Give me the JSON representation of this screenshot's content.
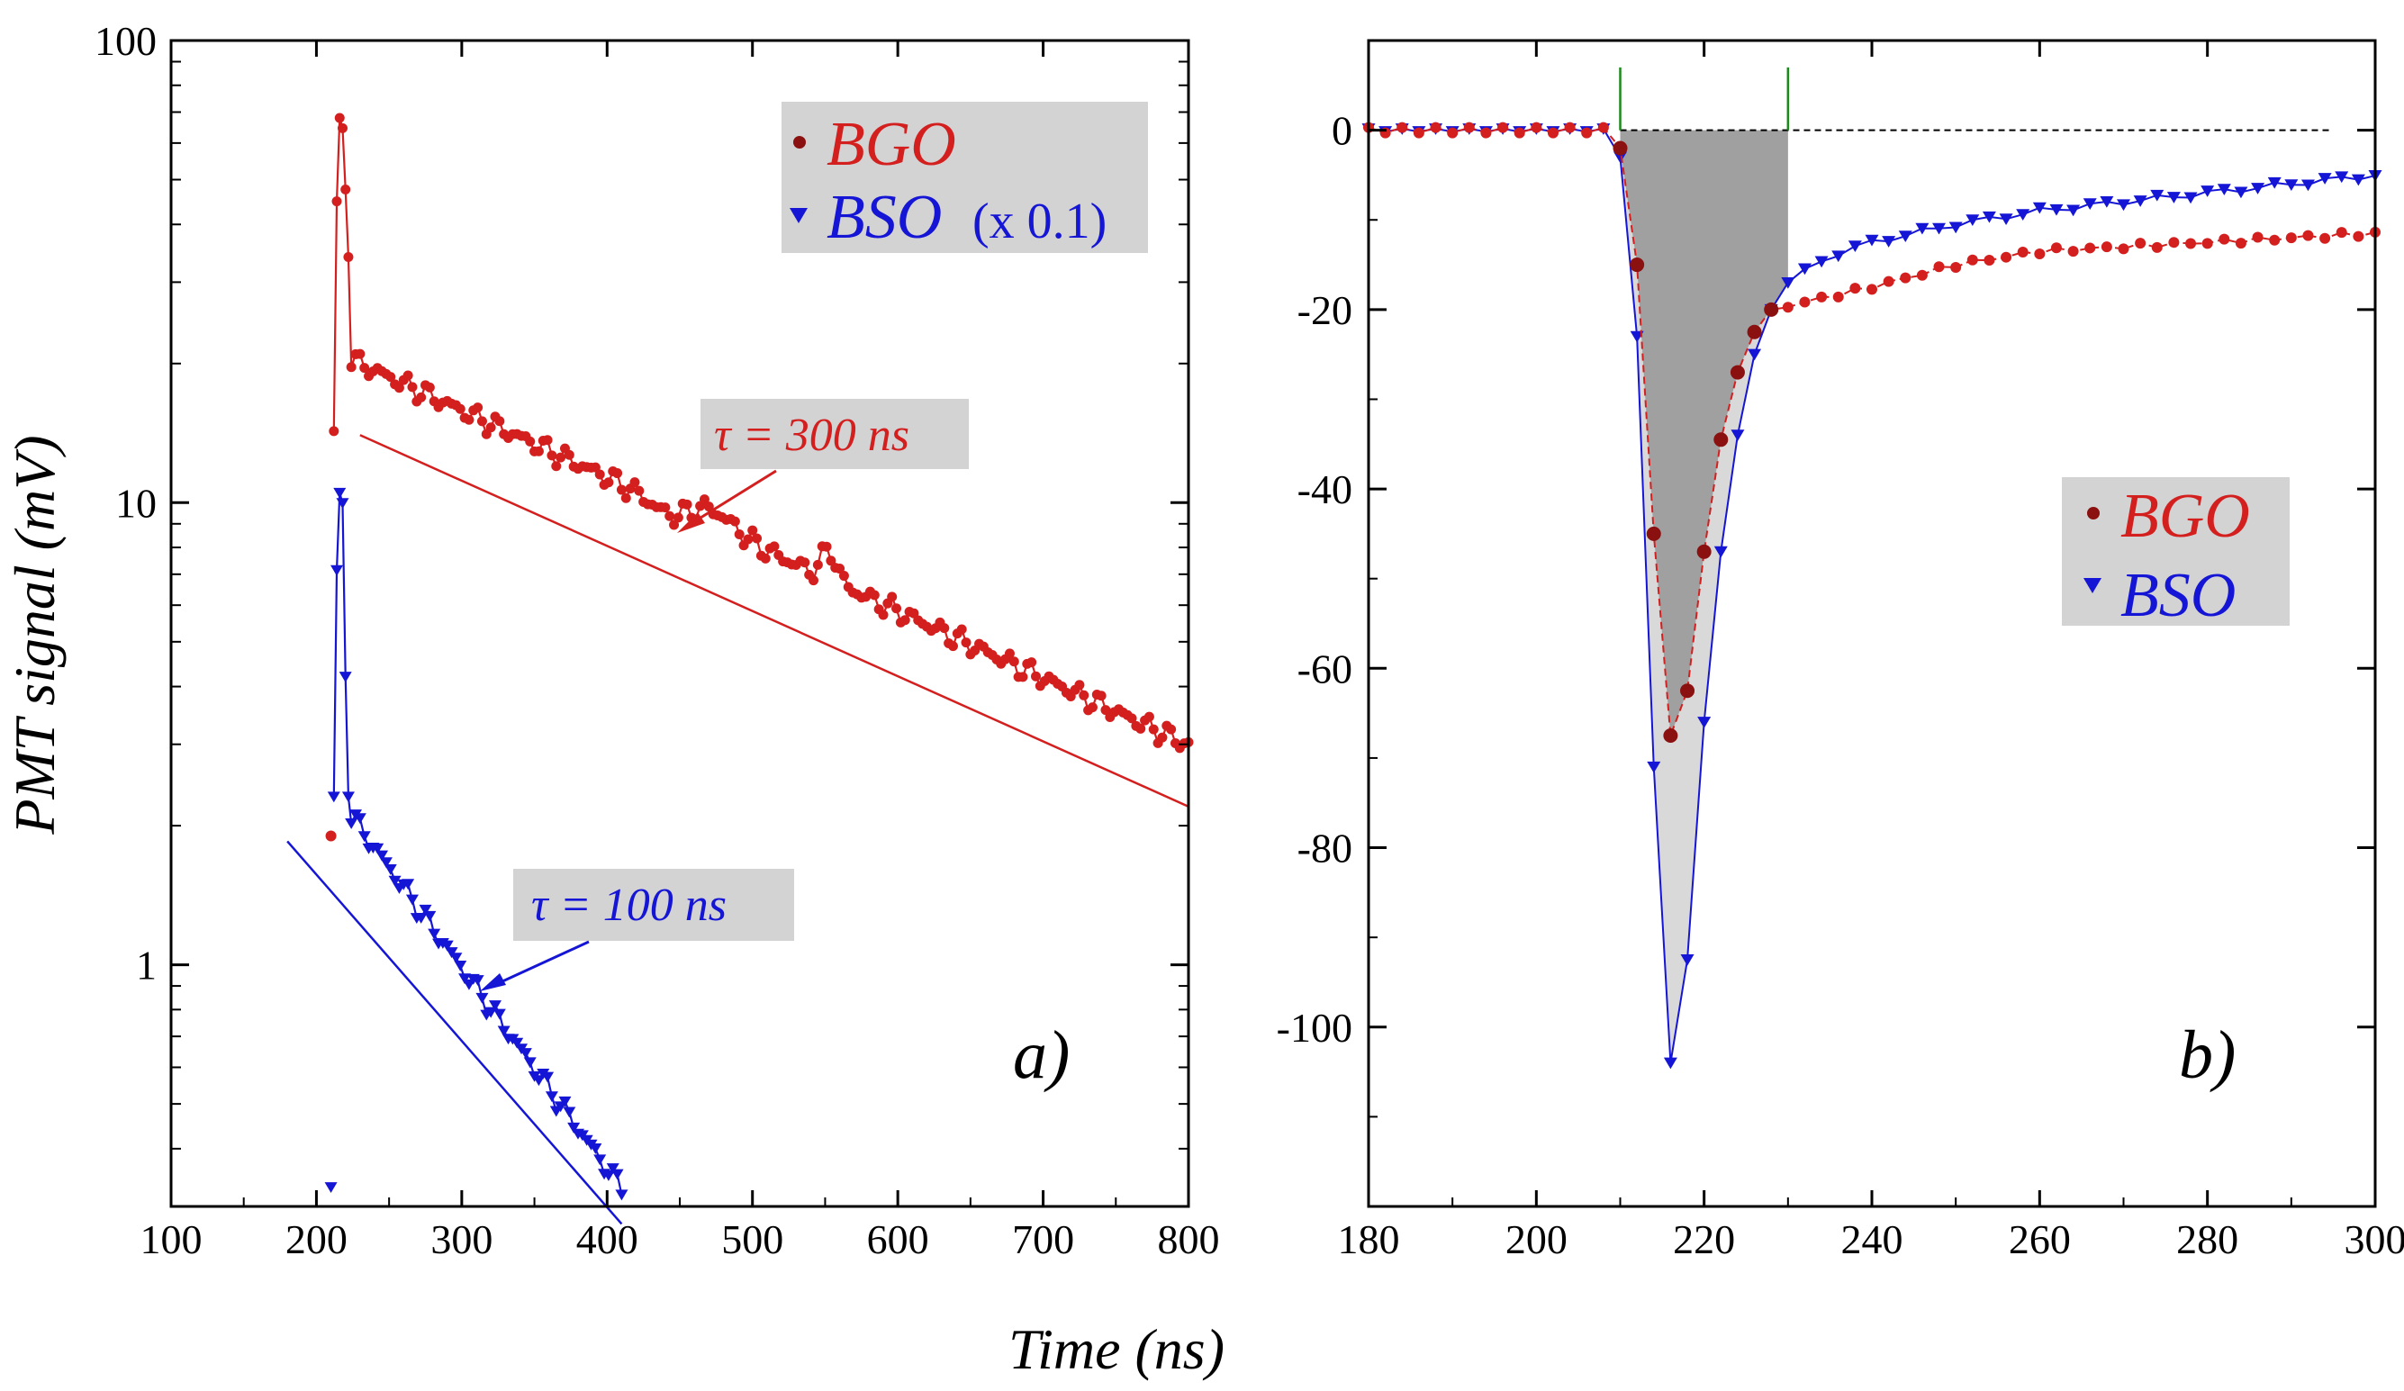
{
  "colors": {
    "bgo": "#d41f1f",
    "bgo_dark": "#8b1010",
    "bso": "#1515d6",
    "legend_bg": "#d3d3d3",
    "shade_dark": "#a0a0a0",
    "shade_light": "#d9d9d9",
    "gate": "#1a8a1a"
  },
  "figure": {
    "xlabel": "Time (ns)",
    "ylabel": "PMT signal (mV)"
  },
  "chart_data": [
    {
      "panel": "a)",
      "type": "scatter",
      "xlim": [
        100,
        800
      ],
      "ylim": [
        0.3,
        100
      ],
      "yscale": "log",
      "xticks": [
        "100",
        "200",
        "300",
        "400",
        "500",
        "600",
        "700",
        "800"
      ],
      "yticks": [
        "1",
        "10",
        "100"
      ],
      "legend": {
        "position": "top-right",
        "entries": [
          {
            "name": "BGO",
            "extra": ""
          },
          {
            "name": "BSO",
            "extra": "(x 0.1)"
          }
        ]
      },
      "annotations": [
        {
          "text": "τ = 300 ns",
          "series": "BGO"
        },
        {
          "text": "τ = 100 ns",
          "series": "BSO"
        }
      ],
      "series": [
        {
          "name": "BGO",
          "decay": {
            "tau": 300,
            "t0": 212,
            "peak": 68,
            "ratio": 0.3,
            "bump1": {
              "t": 470,
              "a": 0.09,
              "w": 22
            },
            "dip": {
              "t": 445,
              "a": -0.06,
              "w": 18
            },
            "bump2": {
              "t": 553,
              "a": 0.16,
              "w": 7
            },
            "t_end": 800
          },
          "fit": {
            "x": [
              230,
              800
            ],
            "y": [
              14.0,
              2.2
            ]
          }
        },
        {
          "name": "BSO",
          "decay": {
            "tau": 100,
            "t0": 212,
            "peak": 10.5,
            "ratio": 0.2,
            "t_end": 410
          },
          "fit": {
            "x": [
              180,
              410
            ],
            "y": [
              1.85,
              0.275
            ]
          }
        }
      ]
    },
    {
      "panel": "b)",
      "type": "line",
      "xlim": [
        180,
        300
      ],
      "ylim": [
        -120,
        10
      ],
      "xticks": [
        "180",
        "200",
        "220",
        "240",
        "260",
        "280",
        "300"
      ],
      "yticks": [
        "0",
        "-20",
        "-40",
        "-60",
        "-80",
        "-100"
      ],
      "gate": [
        210,
        230
      ],
      "legend": {
        "position": "right",
        "entries": [
          {
            "name": "BGO"
          },
          {
            "name": "BSO"
          }
        ]
      },
      "series": [
        {
          "name": "BGO",
          "x": [
            210,
            212,
            214,
            216,
            218,
            220,
            222,
            224,
            226,
            228
          ],
          "y": [
            -2,
            -15,
            -45,
            -67.5,
            -62.5,
            -47,
            -34.5,
            -27,
            -22.5,
            -20
          ],
          "tail": [
            [
              228,
              -20
            ],
            [
              240,
              -17.5
            ],
            [
              250,
              -15
            ],
            [
              260,
              -13.5
            ],
            [
              270,
              -13
            ],
            [
              280,
              -12.5
            ],
            [
              290,
              -12
            ],
            [
              300,
              -11.5
            ]
          ]
        },
        {
          "name": "BSO",
          "x": [
            210,
            212,
            214,
            216,
            218,
            220,
            222,
            224,
            226,
            228,
            230
          ],
          "y": [
            -3,
            -23,
            -71,
            -104,
            -92.5,
            -66,
            -47,
            -34,
            -25,
            -20,
            -17
          ],
          "tail": [
            [
              230,
              -17
            ],
            [
              235,
              -14
            ],
            [
              240,
              -12.5
            ],
            [
              245,
              -11.5
            ],
            [
              250,
              -10.5
            ],
            [
              260,
              -9
            ],
            [
              270,
              -8
            ],
            [
              280,
              -7
            ],
            [
              290,
              -6
            ],
            [
              300,
              -5
            ]
          ]
        }
      ]
    }
  ]
}
